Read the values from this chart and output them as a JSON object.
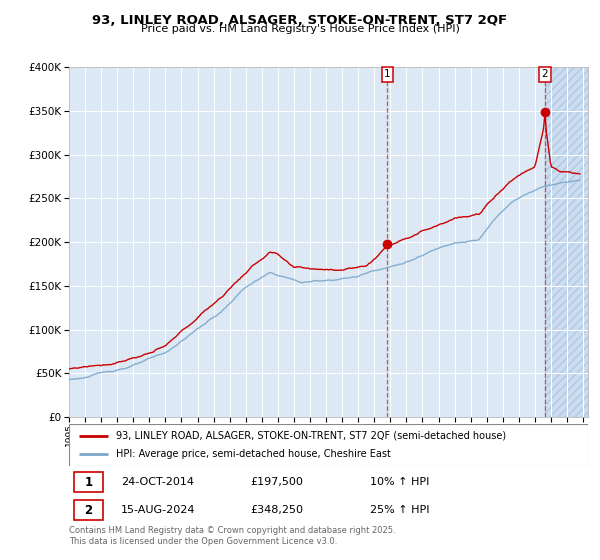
{
  "title": "93, LINLEY ROAD, ALSAGER, STOKE-ON-TRENT, ST7 2QF",
  "subtitle": "Price paid vs. HM Land Registry's House Price Index (HPI)",
  "xlim_start": 1995.0,
  "xlim_end": 2027.3,
  "ylim": [
    0,
    400000
  ],
  "yticks": [
    0,
    50000,
    100000,
    150000,
    200000,
    250000,
    300000,
    350000,
    400000
  ],
  "ytick_labels": [
    "£0",
    "£50K",
    "£100K",
    "£150K",
    "£200K",
    "£250K",
    "£300K",
    "£350K",
    "£400K"
  ],
  "sale1_date": 2014.82,
  "sale1_price": 197500,
  "sale2_date": 2024.62,
  "sale2_price": 348250,
  "hpi_color": "#7aa8cc",
  "price_color": "#cc0000",
  "bg_color": "#dce8f4",
  "grid_color": "#ffffff",
  "future_shade_start": 2024.62,
  "legend1_text": "93, LINLEY ROAD, ALSAGER, STOKE-ON-TRENT, ST7 2QF (semi-detached house)",
  "legend2_text": "HPI: Average price, semi-detached house, Cheshire East",
  "ann1_date": "24-OCT-2014",
  "ann1_price": "£197,500",
  "ann1_hpi": "10% ↑ HPI",
  "ann2_date": "15-AUG-2024",
  "ann2_price": "£348,250",
  "ann2_hpi": "25% ↑ HPI",
  "footer": "Contains HM Land Registry data © Crown copyright and database right 2025.\nThis data is licensed under the Open Government Licence v3.0."
}
